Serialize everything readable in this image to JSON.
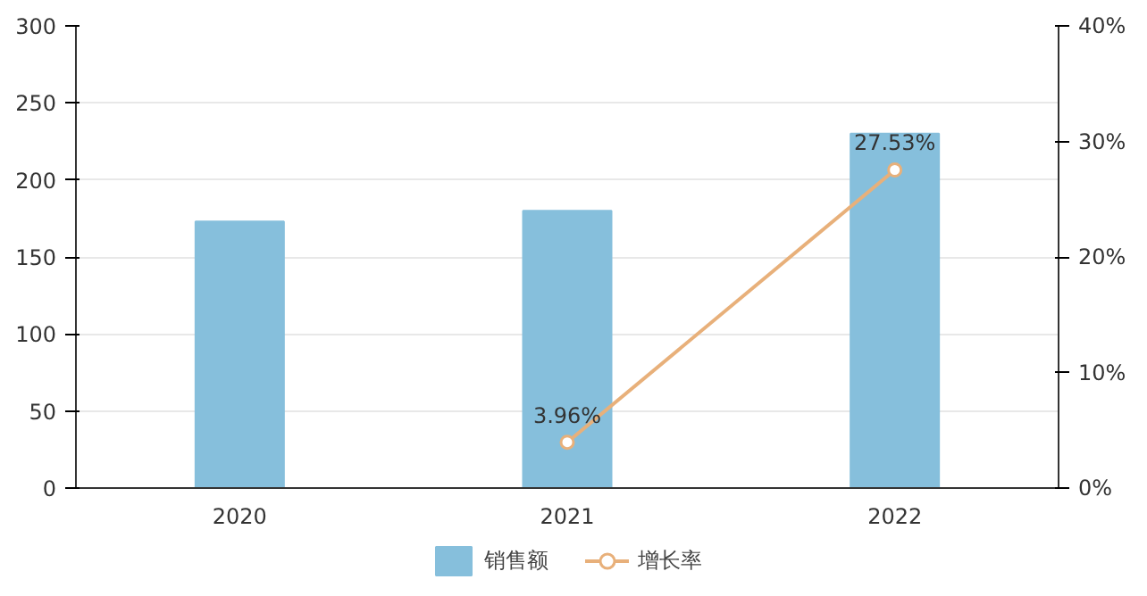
{
  "chart_data": {
    "type": "bar",
    "categories": [
      "2020",
      "2021",
      "2022"
    ],
    "series": [
      {
        "name": "销售额",
        "color": "#86bfdc",
        "values": [
          173,
          180,
          230
        ]
      },
      {
        "name": "增长率",
        "type": "line",
        "axis": "y2",
        "color": "#e8b07a",
        "values": [
          null,
          3.96,
          27.53
        ],
        "value_labels": [
          null,
          "3.96%",
          "27.53%"
        ]
      }
    ],
    "ylim": [
      0,
      300
    ],
    "yticks": [
      0,
      50,
      100,
      150,
      200,
      250,
      300
    ],
    "y2lim": [
      0,
      40
    ],
    "y2ticks": [
      {
        "value": 0,
        "label": "0%"
      },
      {
        "value": 10,
        "label": "10%"
      },
      {
        "value": 20,
        "label": "20%"
      },
      {
        "value": 30,
        "label": "30%"
      },
      {
        "value": 40,
        "label": "40%"
      }
    ],
    "grid": "y",
    "legend": "bottom",
    "marker": "circle",
    "line_style": "solid"
  }
}
